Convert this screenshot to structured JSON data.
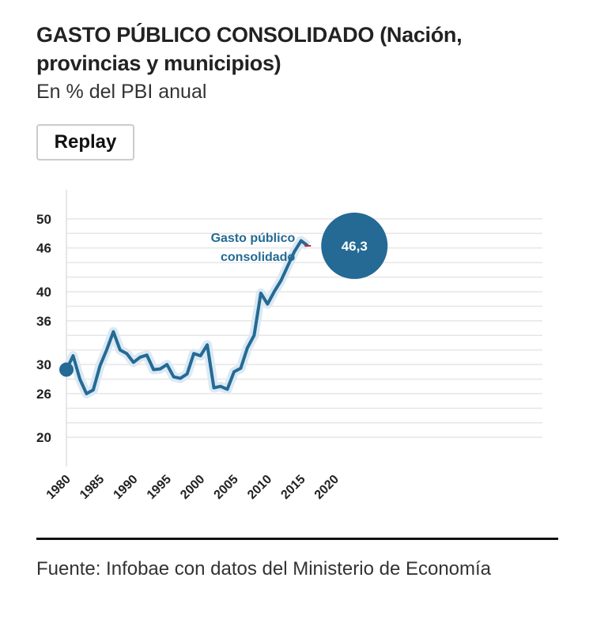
{
  "header": {
    "title": "GASTO PÚBLICO CONSOLIDADO (Nación, provincias y municipios)",
    "subtitle": "En % del PBI anual",
    "button": "Replay"
  },
  "chart_data": {
    "type": "line",
    "x": [
      1980,
      1981,
      1982,
      1983,
      1984,
      1985,
      1986,
      1987,
      1988,
      1989,
      1990,
      1991,
      1992,
      1993,
      1994,
      1995,
      1996,
      1997,
      1998,
      1999,
      2000,
      2001,
      2002,
      2003,
      2004,
      2005,
      2006,
      2007,
      2008,
      2009,
      2010,
      2011,
      2012,
      2013,
      2014,
      2015,
      2016
    ],
    "series": [
      {
        "name": "Gasto público consolidado",
        "color": "#246a95",
        "values": [
          29.3,
          31.2,
          28,
          26,
          26.5,
          29.8,
          32,
          34.5,
          32,
          31.5,
          30.3,
          31,
          31.3,
          29.3,
          29.4,
          30,
          28.3,
          28.1,
          28.7,
          31.5,
          31.2,
          32.7,
          26.8,
          27,
          26.6,
          29,
          29.5,
          32.3,
          34,
          39.8,
          38.3,
          40,
          41.5,
          43.5,
          45.5,
          47,
          46.3
        ],
        "value_labels": [
          null,
          null,
          null,
          null,
          null,
          null,
          null,
          null,
          null,
          null,
          null,
          null,
          null,
          null,
          null,
          null,
          null,
          null,
          null,
          null,
          null,
          null,
          null,
          null,
          null,
          null,
          null,
          null,
          null,
          null,
          null,
          null,
          null,
          null,
          null,
          null,
          "46,3"
        ]
      }
    ],
    "xlim": [
      1980,
      2051
    ],
    "xticks": [
      1980,
      1985,
      1990,
      1995,
      2000,
      2005,
      2010,
      2015,
      2020
    ],
    "ylim": [
      16,
      54
    ],
    "yticks": [
      20,
      26,
      30,
      36,
      40,
      46,
      50
    ],
    "ygrid": [
      20,
      22,
      24,
      26,
      28,
      30,
      32,
      34,
      36,
      38,
      40,
      42,
      44,
      46,
      48,
      50
    ],
    "grid": true
  },
  "footer": {
    "source": "Fuente: Infobae con datos del Ministerio de Economía"
  }
}
